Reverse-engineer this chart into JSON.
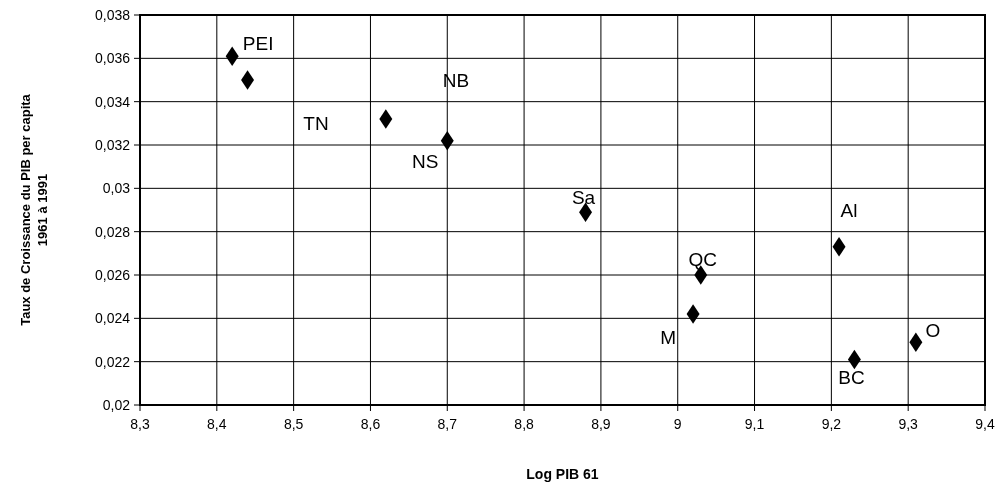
{
  "chart_data": {
    "type": "scatter",
    "xlabel": "Log PIB 61",
    "ylabel": "Taux de Croissance du PIB per capita\n1961 à 1991",
    "x": [
      8.42,
      8.44,
      8.62,
      8.7,
      8.88,
      9.03,
      9.02,
      9.21,
      9.23,
      9.31
    ],
    "values": [
      0.0361,
      0.035,
      0.0332,
      0.0322,
      0.0289,
      0.026,
      0.0242,
      0.0273,
      0.0221,
      0.0229
    ],
    "color": "#000000",
    "marker": "diamond",
    "grid": true,
    "xlim": [
      8.3,
      9.4
    ],
    "ylim": [
      0.02,
      0.038
    ],
    "xticks": [
      {
        "value": 8.3,
        "label": "8,3"
      },
      {
        "value": 8.4,
        "label": "8,4"
      },
      {
        "value": 8.5,
        "label": "8,5"
      },
      {
        "value": 8.6,
        "label": "8,6"
      },
      {
        "value": 8.7,
        "label": "8,7"
      },
      {
        "value": 8.8,
        "label": "8,8"
      },
      {
        "value": 8.9,
        "label": "8,9"
      },
      9,
      {
        "value": 9.1,
        "label": "9,1"
      },
      {
        "value": 9.2,
        "label": "9,2"
      },
      {
        "value": 9.3,
        "label": "9,3"
      },
      {
        "value": 9.4,
        "label": "9,4"
      }
    ],
    "yticks": [
      {
        "value": 0.02,
        "label": "0,02"
      },
      {
        "value": 0.022,
        "label": "0,022"
      },
      {
        "value": 0.024,
        "label": "0,024"
      },
      {
        "value": 0.026,
        "label": "0,026"
      },
      {
        "value": 0.028,
        "label": "0,028"
      },
      {
        "value": 0.03,
        "label": "0,03"
      },
      {
        "value": 0.032,
        "label": "0,032"
      },
      {
        "value": 0.034,
        "label": "0,034"
      },
      {
        "value": 0.036,
        "label": "0,036"
      },
      {
        "value": 0.038,
        "label": "0,038"
      }
    ],
    "annotations": [
      {
        "text": "PEI",
        "x": 8.42,
        "y": 0.0361
      },
      "NB",
      "TN",
      {
        "text": "NS",
        "x": 8.7,
        "y": 0.0322
      },
      {
        "text": "Sa",
        "x": 8.88,
        "y": 0.0289
      },
      {
        "text": "QC",
        "x": 9.03,
        "y": 0.026
      },
      {
        "text": "M",
        "x": 9.02,
        "y": 0.0242
      },
      {
        "text": "Al",
        "x": 9.21,
        "y": 0.0273
      },
      {
        "text": "BC",
        "x": 9.23,
        "y": 0.0221
      },
      {
        "text": "O",
        "x": 9.31,
        "y": 0.0229
      }
    ]
  }
}
